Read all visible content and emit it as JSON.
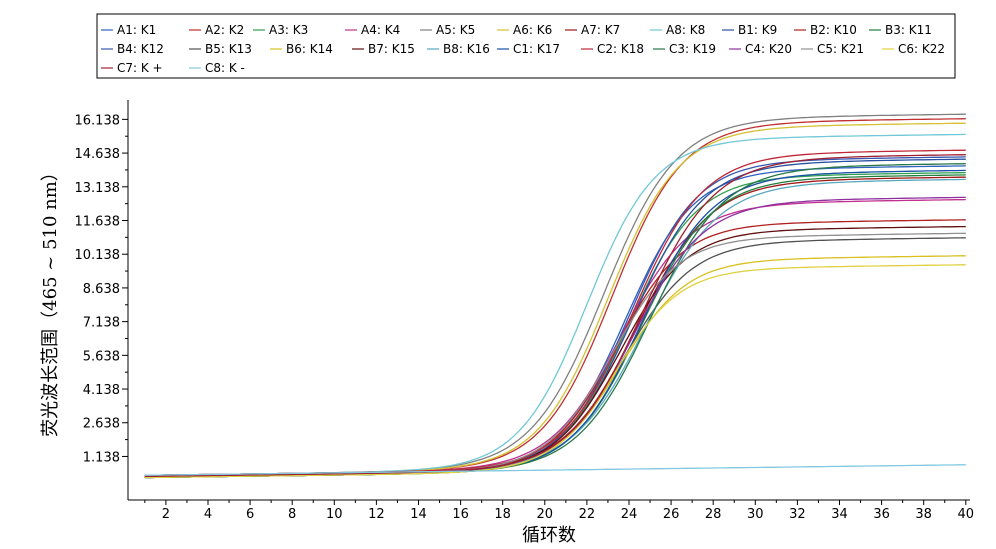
{
  "chart_data": {
    "type": "line",
    "title": "",
    "xlabel": "循环数",
    "ylabel": "荧光波长范围（465 ~ 510 nm）",
    "xlim": [
      0.2,
      40.2
    ],
    "ylim": [
      -0.8,
      17.0
    ],
    "x_ticks": [
      2,
      4,
      6,
      8,
      10,
      12,
      14,
      16,
      18,
      20,
      22,
      24,
      26,
      28,
      30,
      32,
      34,
      36,
      38,
      40
    ],
    "y_ticks": [
      1.138,
      2.638,
      4.138,
      5.638,
      7.138,
      8.638,
      10.138,
      11.638,
      13.138,
      14.638,
      16.138
    ],
    "x_tick_labels": [
      "2",
      "4",
      "6",
      "8",
      "10",
      "12",
      "14",
      "16",
      "18",
      "20",
      "22",
      "24",
      "26",
      "28",
      "30",
      "32",
      "34",
      "36",
      "38",
      "40"
    ],
    "y_tick_labels": [
      "1.138",
      "2.638",
      "4.138",
      "5.638",
      "7.138",
      "8.638",
      "10.138",
      "11.638",
      "13.138",
      "14.638",
      "16.138"
    ],
    "grid": false,
    "legend_position": "top",
    "series": [
      {
        "name": "A1: K1",
        "color": "#3060c0",
        "base": 0.2,
        "plateau": 13.6,
        "mid": 23.8,
        "k": 0.62
      },
      {
        "name": "A2: K2",
        "color": "#c03030",
        "base": 0.3,
        "plateau": 15.7,
        "mid": 23.2,
        "k": 0.6
      },
      {
        "name": "A3: K3",
        "color": "#30a050",
        "base": 0.25,
        "plateau": 13.3,
        "mid": 24.0,
        "k": 0.62
      },
      {
        "name": "A4: K4",
        "color": "#c03090",
        "base": 0.3,
        "plateau": 12.1,
        "mid": 23.6,
        "k": 0.6
      },
      {
        "name": "A5: K5",
        "color": "#808080",
        "base": 0.3,
        "plateau": 15.9,
        "mid": 22.8,
        "k": 0.58
      },
      {
        "name": "A6: K6",
        "color": "#d4c030",
        "base": 0.3,
        "plateau": 15.5,
        "mid": 23.0,
        "k": 0.6
      },
      {
        "name": "A7: K7",
        "color": "#a01818",
        "base": 0.25,
        "plateau": 13.1,
        "mid": 24.4,
        "k": 0.58
      },
      {
        "name": "A8: K8",
        "color": "#70c8d8",
        "base": 0.3,
        "plateau": 15.0,
        "mid": 22.0,
        "k": 0.62
      },
      {
        "name": "B1: K9",
        "color": "#2850a0",
        "base": 0.2,
        "plateau": 13.9,
        "mid": 24.2,
        "k": 0.6
      },
      {
        "name": "B2: K10",
        "color": "#b02020",
        "base": 0.25,
        "plateau": 11.2,
        "mid": 23.4,
        "k": 0.64
      },
      {
        "name": "B3: K11",
        "color": "#208040",
        "base": 0.2,
        "plateau": 13.2,
        "mid": 24.6,
        "k": 0.6
      },
      {
        "name": "B4: K12",
        "color": "#3858b0",
        "base": 0.2,
        "plateau": 14.0,
        "mid": 24.0,
        "k": 0.62
      },
      {
        "name": "B5: K13",
        "color": "#505050",
        "base": 0.25,
        "plateau": 10.4,
        "mid": 23.8,
        "k": 0.62
      },
      {
        "name": "B6: K14",
        "color": "#d8c020",
        "base": 0.2,
        "plateau": 9.6,
        "mid": 23.6,
        "k": 0.64
      },
      {
        "name": "B7: K15",
        "color": "#601010",
        "base": 0.25,
        "plateau": 10.9,
        "mid": 23.6,
        "k": 0.64
      },
      {
        "name": "B8: K16",
        "color": "#58a8c0",
        "base": 0.3,
        "plateau": 13.0,
        "mid": 24.8,
        "k": 0.58
      },
      {
        "name": "C1: K17",
        "color": "#1850a8",
        "base": 0.2,
        "plateau": 13.4,
        "mid": 24.6,
        "k": 0.6
      },
      {
        "name": "C2: K18",
        "color": "#c02838",
        "base": 0.3,
        "plateau": 14.3,
        "mid": 24.2,
        "k": 0.6
      },
      {
        "name": "C3: K19",
        "color": "#287848",
        "base": 0.2,
        "plateau": 13.7,
        "mid": 25.0,
        "k": 0.58
      },
      {
        "name": "C4: K20",
        "color": "#9030a0",
        "base": 0.25,
        "plateau": 12.2,
        "mid": 24.2,
        "k": 0.6
      },
      {
        "name": "C5: K21",
        "color": "#909090",
        "base": 0.25,
        "plateau": 10.6,
        "mid": 23.2,
        "k": 0.64
      },
      {
        "name": "C6: K22",
        "color": "#e0d040",
        "base": 0.2,
        "plateau": 9.2,
        "mid": 23.4,
        "k": 0.66
      },
      {
        "name": "C7: K +",
        "color": "#a02030",
        "base": 0.25,
        "plateau": 14.1,
        "mid": 24.6,
        "k": 0.58
      },
      {
        "name": "C8: K -",
        "color": "#80c8e0",
        "base": 0.3,
        "plateau": 0.3,
        "mid": 40.0,
        "k": 0.1
      }
    ]
  }
}
